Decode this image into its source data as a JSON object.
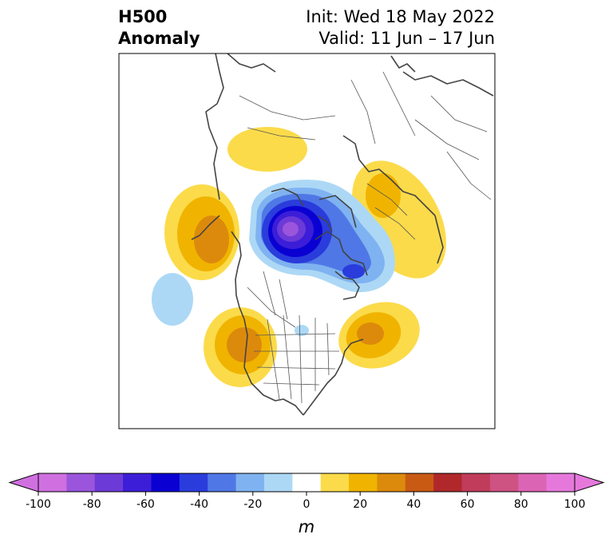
{
  "title": {
    "left_line1": "H500",
    "left_line2": "Anomaly",
    "right_line1": "Init: Wed 18 May 2022",
    "right_line2": "Valid: 11 Jun – 17 Jun"
  },
  "colorbar": {
    "unit": "m",
    "min": -100,
    "max": 100,
    "step": 10,
    "tick_labels": [
      "-100",
      "-80",
      "-60",
      "-40",
      "-20",
      "0",
      "20",
      "40",
      "60",
      "80",
      "100"
    ],
    "colors": [
      "#d070e0",
      "#9a55dc",
      "#6c3ad6",
      "#3c1ed8",
      "#0a00d2",
      "#2a3cdc",
      "#4f78e6",
      "#7fb2f0",
      "#acd8f6",
      "#ffffff",
      "#fbdb4a",
      "#f0b400",
      "#dc8a0c",
      "#c85a14",
      "#b0282a",
      "#c03c5a",
      "#ce5282",
      "#dc64b4",
      "#e678dc"
    ],
    "under_color": "#d070e0",
    "over_color": "#e678dc"
  },
  "colors": {
    "coast": "#444444",
    "border": "#555555"
  }
}
